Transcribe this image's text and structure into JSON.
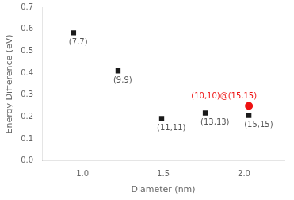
{
  "chart_data": {
    "type": "scatter",
    "xlabel": "Diameter (nm)",
    "ylabel": "Energy Difference (eV)",
    "xlim": [
      0.75,
      2.25
    ],
    "ylim": [
      0.0,
      0.7
    ],
    "xticks": [
      {
        "value": 1.0,
        "label": "1.0"
      },
      1.5,
      {
        "value": 2.0,
        "label": "2.0"
      }
    ],
    "yticks": [
      {
        "value": 0.0,
        "label": "0.0"
      },
      0.1,
      0.2,
      0.3,
      0.4,
      0.5,
      0.6,
      0.7
    ],
    "grid": false,
    "legend": false,
    "series": [
      {
        "color": "#1a1a1a",
        "marker": "square",
        "x": [
          0.945,
          1.22,
          1.49,
          1.76,
          2.03
        ],
        "values": [
          0.583,
          0.41,
          0.193,
          0.218,
          0.207
        ],
        "annotations": [
          "(7,7)",
          "(9,9)",
          "(11,11)",
          "(13,13)",
          "(15,15)"
        ]
      },
      {
        "color": "#ee1111",
        "marker": "circle",
        "x": [
          2.03
        ],
        "values": [
          0.25
        ],
        "annotations": [
          "(10,10)@(15,15)"
        ]
      }
    ]
  }
}
